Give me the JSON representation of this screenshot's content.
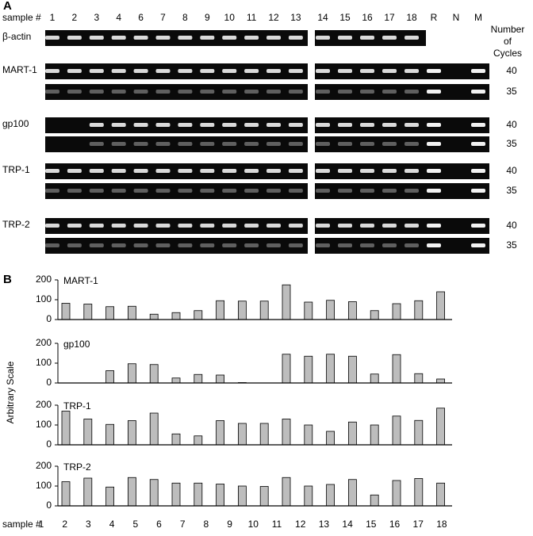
{
  "gel": {
    "panel": "A",
    "sample_label": "sample #",
    "lanes": [
      "1",
      "2",
      "3",
      "4",
      "6",
      "7",
      "8",
      "9",
      "10",
      "11",
      "12",
      "13",
      "14",
      "15",
      "16",
      "17",
      "18",
      "R",
      "N",
      "M"
    ],
    "cycles_title": "Number of Cycles",
    "rows": [
      {
        "label": "β-actin"
      },
      {
        "label": "MART-1",
        "cycles": [
          40,
          35
        ]
      },
      {
        "label": "gp100",
        "cycles": [
          40,
          35
        ]
      },
      {
        "label": "TRP-1",
        "cycles": [
          40,
          35
        ]
      },
      {
        "label": "TRP-2",
        "cycles": [
          40,
          35
        ]
      }
    ]
  },
  "panel_b": {
    "label": "B",
    "y_label": "Arbitrary Scale",
    "x_label": "sample #",
    "categories": [
      "1",
      "2",
      "3",
      "4",
      "5",
      "6",
      "7",
      "8",
      "9",
      "10",
      "11",
      "12",
      "13",
      "14",
      "15",
      "16",
      "17",
      "18"
    ]
  },
  "chart_data": [
    {
      "type": "bar",
      "title": "MART-1",
      "color": "#bdbdbd",
      "ylim": [
        0,
        200
      ],
      "yticks": [
        0,
        100,
        200
      ],
      "values": [
        82,
        78,
        65,
        67,
        27,
        35,
        45,
        95,
        93,
        93,
        175,
        88,
        97,
        90,
        45,
        80,
        95,
        140
      ]
    },
    {
      "type": "bar",
      "title": "gp100",
      "color": "#bdbdbd",
      "ylim": [
        0,
        200
      ],
      "yticks": [
        0,
        100,
        200
      ],
      "values": [
        0,
        0,
        62,
        97,
        93,
        25,
        43,
        40,
        2,
        0,
        145,
        135,
        145,
        135,
        45,
        143,
        47,
        20
      ]
    },
    {
      "type": "bar",
      "title": "TRP-1",
      "color": "#bdbdbd",
      "ylim": [
        0,
        200
      ],
      "yticks": [
        0,
        100,
        200
      ],
      "values": [
        170,
        130,
        103,
        122,
        160,
        55,
        45,
        122,
        108,
        108,
        130,
        100,
        68,
        115,
        100,
        145,
        123,
        185
      ]
    },
    {
      "type": "bar",
      "title": "TRP-2",
      "color": "#bdbdbd",
      "ylim": [
        0,
        200
      ],
      "yticks": [
        0,
        100,
        200
      ],
      "values": [
        122,
        140,
        95,
        143,
        133,
        115,
        115,
        110,
        100,
        98,
        143,
        100,
        108,
        133,
        55,
        128,
        138,
        115
      ]
    }
  ]
}
